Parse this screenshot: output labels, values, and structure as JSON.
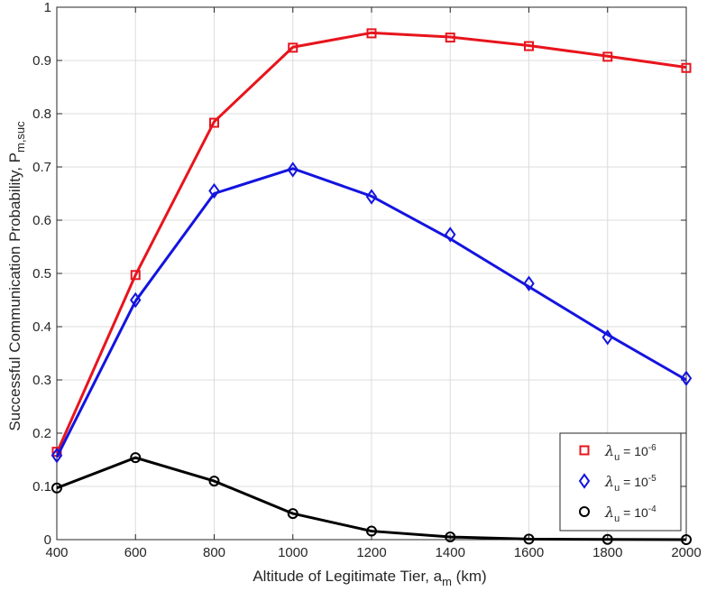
{
  "chart_data": {
    "type": "line",
    "xlabel": "Altitude of Legitimate Tier, a",
    "xlabel_sub": "m",
    "xlabel_unit": " (km)",
    "ylabel": "Successful Communication Probability, P",
    "ylabel_sub": "m,suc",
    "xlim": [
      400,
      2000
    ],
    "ylim": [
      0,
      1
    ],
    "x_ticks": [
      "400",
      "600",
      "800",
      "1000",
      "1200",
      "1400",
      "1600",
      "1800",
      "2000"
    ],
    "y_ticks": [
      "0",
      "0.1",
      "0.2",
      "0.3",
      "0.4",
      "0.5",
      "0.6",
      "0.7",
      "0.8",
      "0.9",
      "1"
    ],
    "grid": true,
    "legend_position": "bottom-right",
    "x": [
      400,
      600,
      800,
      1000,
      1200,
      1400,
      1600,
      1800,
      2000
    ],
    "series": [
      {
        "sym": "λ",
        "sub": "u",
        "eq": " = 10",
        "exp": "-6",
        "color": "#e8141c",
        "marker": "square",
        "values": [
          0.163,
          0.497,
          0.785,
          0.925,
          0.952,
          0.944,
          0.928,
          0.908,
          0.887
        ],
        "marker_values": [
          0.165,
          0.497,
          0.783,
          0.924,
          0.951,
          0.943,
          0.927,
          0.907,
          0.886
        ]
      },
      {
        "sym": "λ",
        "sub": "u",
        "eq": " = 10",
        "exp": "-5",
        "color": "#1414e0",
        "marker": "diamond",
        "values": [
          0.155,
          0.448,
          0.65,
          0.697,
          0.645,
          0.565,
          0.475,
          0.385,
          0.3
        ],
        "marker_values": [
          0.158,
          0.45,
          0.655,
          0.695,
          0.644,
          0.573,
          0.481,
          0.38,
          0.303
        ]
      },
      {
        "sym": "λ",
        "sub": "u",
        "eq": " = 10",
        "exp": "-4",
        "color": "#000000",
        "marker": "circle",
        "values": [
          0.097,
          0.154,
          0.11,
          0.049,
          0.016,
          0.005,
          0.001,
          0.0005,
          0.0
        ],
        "marker_values": [
          0.097,
          0.154,
          0.11,
          0.049,
          0.016,
          0.005,
          0.001,
          0.0005,
          0.0
        ]
      }
    ]
  }
}
